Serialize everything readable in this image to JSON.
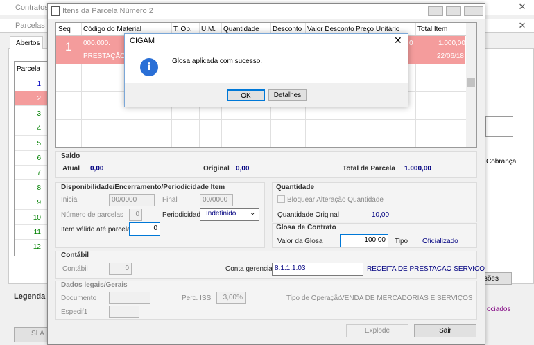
{
  "background": {
    "contratos_title": "Contratos",
    "parcelas_title": "Parcelas do",
    "tab": "Abertos",
    "list_header": "Parcela",
    "parcelas": [
      "1",
      "2",
      "3",
      "4",
      "5",
      "6",
      "7",
      "8",
      "9",
      "10",
      "11",
      "12"
    ],
    "legenda": "Legenda",
    "cobranca": "Cobrança",
    "button_partial": "ssões",
    "associados_partial": "ociados",
    "sla": "SLA"
  },
  "dialog": {
    "title": "Itens da Parcela Número 2",
    "columns": [
      "Seq",
      "Código do Material",
      "T. Op.",
      "U.M.",
      "Quantidade",
      "Desconto",
      "Valor Desconto",
      "Preço Unitário",
      "Total Item"
    ],
    "row": {
      "seq": "1",
      "codigo": "000.000.",
      "descricao": "PRESTAÇÃO DE",
      "preco_partial": "0",
      "total": "1.000,00",
      "data": "22/06/18"
    },
    "saldo": {
      "title": "Saldo",
      "atual_label": "Atual",
      "atual": "0,00",
      "original_label": "Original",
      "original": "0,00",
      "total_label": "Total da Parcela",
      "total": "1.000,00"
    },
    "disponibilidade": {
      "title": "Disponibilidade/Encerramento/Periodicidade Item",
      "inicial_label": "Inicial",
      "inicial": "00/0000",
      "final_label": "Final",
      "final": "00/0000",
      "num_parcelas_label": "Número de parcelas",
      "num_parcelas": "0",
      "periodicidade_label": "Periodicidade",
      "periodicidade": "Indefinido",
      "item_valido_label": "Item válido até parcela",
      "item_valido": "0"
    },
    "quantidade": {
      "title": "Quantidade",
      "bloquear": "Bloquear Alteração Quantidade",
      "original_label": "Quantidade Original",
      "original": "10,00"
    },
    "glosa": {
      "title": "Glosa de Contrato",
      "valor_label": "Valor da Glosa",
      "valor": "100,00",
      "tipo_label": "Tipo",
      "tipo": "Oficializado"
    },
    "contabil": {
      "title": "Contábil",
      "contabil_label": "Contábil",
      "contabil": "0",
      "conta_label": "Conta gerencial",
      "conta": "8.1.1.1.03",
      "conta_desc": "RECEITA DE PRESTACAO SERVICO"
    },
    "dados": {
      "title": "Dados legais/Gerais",
      "documento_label": "Documento",
      "iss_label": "Perc. ISS",
      "iss": "3,00%",
      "operacao_label": "Tipo de Operação",
      "operacao": "VENDA DE MERCADORIAS E SERVIÇOS",
      "especif_label": "Especif1"
    },
    "buttons": {
      "explode": "Explode",
      "sair": "Sair"
    }
  },
  "message_box": {
    "title": "CIGAM",
    "message": "Glosa aplicada com sucesso.",
    "ok": "OK",
    "detalhes": "Detalhes"
  }
}
